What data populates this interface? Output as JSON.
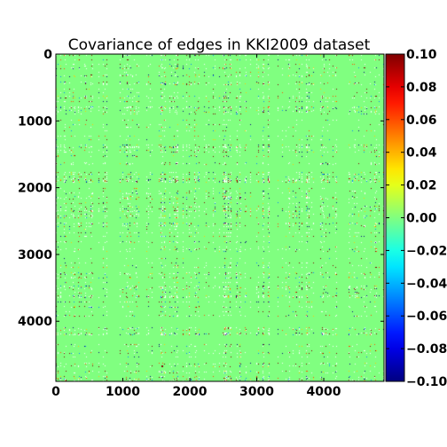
{
  "chart_data": {
    "type": "heatmap",
    "title": "Covariance of edges in KKI2009 dataset",
    "xlabel": "",
    "ylabel": "",
    "xlim": [
      0,
      4900
    ],
    "ylim": [
      0,
      4900
    ],
    "y_axis_inverted": true,
    "x_ticks": [
      0,
      1000,
      2000,
      3000,
      4000
    ],
    "x_tick_labels": [
      "0",
      "1000",
      "2000",
      "3000",
      "4000"
    ],
    "y_ticks": [
      0,
      1000,
      2000,
      3000,
      4000
    ],
    "y_tick_labels": [
      "0",
      "1000",
      "2000",
      "3000",
      "4000"
    ],
    "colorbar": {
      "colormap": "jet",
      "range": [
        -0.1,
        0.1
      ],
      "ticks": [
        0.1,
        0.08,
        0.06,
        0.04,
        0.02,
        0.0,
        -0.02,
        -0.04,
        -0.06,
        -0.08,
        -0.1
      ],
      "tick_labels": [
        "0.10",
        "0.08",
        "0.06",
        "0.04",
        "0.02",
        "0.00",
        "−0.02",
        "−0.04",
        "−0.06",
        "−0.08",
        "−0.10"
      ]
    },
    "matrix_description": {
      "size": [
        4900,
        4900
      ],
      "symmetric": true,
      "dominant_value": 0.0,
      "dense_blocks_x": [
        [
          0,
          120
        ],
        [
          700,
          900
        ],
        [
          1550,
          1700
        ],
        [
          1800,
          2000
        ],
        [
          2500,
          2750
        ],
        [
          3000,
          3300
        ],
        [
          3600,
          3800
        ],
        [
          4250,
          4350
        ]
      ],
      "dense_blocks_y": [
        [
          0,
          120
        ],
        [
          600,
          800
        ],
        [
          1300,
          1500
        ],
        [
          1700,
          2000
        ],
        [
          2300,
          2550
        ],
        [
          2650,
          2800
        ],
        [
          3600,
          3750
        ],
        [
          4150,
          4300
        ]
      ]
    },
    "grid": false,
    "legend": "none"
  }
}
